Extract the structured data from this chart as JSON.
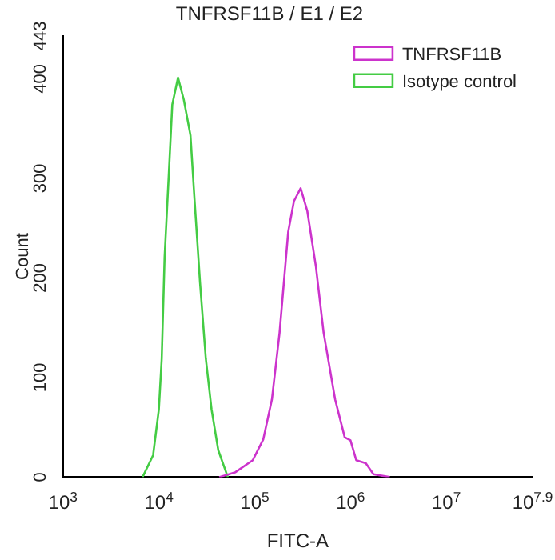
{
  "chart_data": {
    "type": "line",
    "title": "TNFRSF11B / E1 / E2",
    "xlabel": "FITC-A",
    "ylabel": "Count",
    "log": "x",
    "legend": "top right",
    "marker": "none",
    "line_style": "solid",
    "xlim": [
      1000,
      79432823
    ],
    "xticks": [
      {
        "value": 1000,
        "label": "10$^{3}$"
      },
      {
        "value": 10000,
        "label": "10$^{4}$"
      },
      {
        "value": 100000,
        "label": "10$^{5}$"
      },
      {
        "value": 1000000,
        "label": "10$^{6}$"
      },
      {
        "value": 10000000,
        "label": "10$^{7}$"
      },
      {
        "value": 79432823,
        "label": "10$^{7.9}$"
      }
    ],
    "ylim": [
      0,
      443
    ],
    "yticks": [
      0,
      100,
      200,
      300,
      400,
      443
    ],
    "series": [
      {
        "name": "TNFRSF11B",
        "color": "#cc33cc",
        "x": [
          42658,
          63096,
          95499,
          123027,
          151356,
          181970,
          223872,
          257040,
          301995,
          354813,
          436516,
          524807,
          691831,
          870964,
          1000000,
          1148154,
          1445440,
          1737801,
          2570396
        ],
        "values": [
          0,
          5,
          17,
          38,
          78,
          145,
          246,
          277,
          290,
          267,
          211,
          145,
          78,
          40,
          37,
          17,
          14,
          3,
          0
        ]
      },
      {
        "name": "Isotype control",
        "color": "#44cc44",
        "x": [
          6761,
          8710,
          10000,
          10715,
          11482,
          12589,
          13804,
          15849,
          18197,
          21380,
          23442,
          26915,
          30903,
          35481,
          41687,
          52481
        ],
        "values": [
          0,
          22,
          68,
          119,
          221,
          297,
          374,
          401,
          379,
          343,
          282,
          195,
          119,
          68,
          27,
          0
        ]
      }
    ]
  }
}
